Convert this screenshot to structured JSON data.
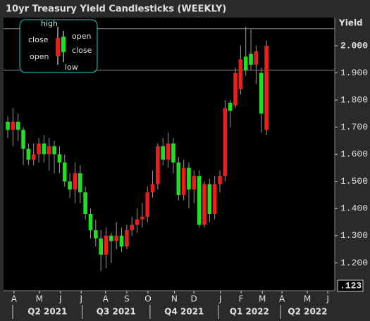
{
  "chart_data": {
    "type": "candlestick",
    "title": "10yr Treasury Yield Candlesticks (WEEKLY)",
    "y_axis_label": "Yield",
    "price_box": ".123",
    "up_color": "#e8201c",
    "down_color": "#22dd22",
    "ylim": [
      1.097,
      2.104
    ],
    "yticks": [
      {
        "value": 1.2,
        "label": "1.200"
      },
      {
        "value": 1.3,
        "label": "1.300"
      },
      {
        "value": 1.4,
        "label": "1.400"
      },
      {
        "value": 1.5,
        "label": "1.500"
      },
      {
        "value": 1.6,
        "label": "1.600"
      },
      {
        "value": 1.7,
        "label": "1.700"
      },
      {
        "value": 1.8,
        "label": "1.800"
      },
      {
        "value": 1.9,
        "label": "1.900"
      },
      {
        "value": 2.0,
        "label": "2.000"
      }
    ],
    "hlines": [
      2.063,
      1.91
    ],
    "xlim": [
      -0.82,
      63.2
    ],
    "xticks": [
      {
        "value": 1.2,
        "label": "A"
      },
      {
        "value": 6.1,
        "label": "M"
      },
      {
        "value": 10.2,
        "label": "J"
      },
      {
        "value": 14.2,
        "label": "J"
      },
      {
        "value": 18.9,
        "label": "A"
      },
      {
        "value": 23.0,
        "label": "S"
      },
      {
        "value": 27.1,
        "label": "O"
      },
      {
        "value": 32.2,
        "label": "N"
      },
      {
        "value": 35.97,
        "label": "D"
      },
      {
        "value": 41.1,
        "label": "J"
      },
      {
        "value": 45.1,
        "label": "F"
      },
      {
        "value": 49.2,
        "label": "M"
      },
      {
        "value": 53.0,
        "label": "A"
      },
      {
        "value": 57.9,
        "label": "M"
      },
      {
        "value": 61.85,
        "label": "J"
      }
    ],
    "quarters": [
      {
        "label": "Q2 2021",
        "start": 0.95,
        "end": 14.4
      },
      {
        "label": "Q3 2021",
        "start": 14.4,
        "end": 27.5
      },
      {
        "label": "Q4 2021",
        "start": 27.5,
        "end": 40.7
      },
      {
        "label": "Q1 2022",
        "start": 40.7,
        "end": 52.7
      },
      {
        "label": "Q2 2022",
        "start": 52.7,
        "end": 63.2
      }
    ],
    "legend_labels": [
      "high",
      "close",
      "open",
      "open",
      "close",
      "low"
    ],
    "x": [
      0,
      1,
      2,
      3,
      4,
      5,
      6,
      7,
      8,
      9,
      10,
      11,
      12,
      13,
      14,
      15,
      16,
      17,
      18,
      19,
      20,
      21,
      22,
      23,
      24,
      25,
      26,
      27,
      28,
      29,
      30,
      31,
      32,
      33,
      34,
      35,
      36,
      37,
      38,
      39,
      40,
      41,
      42,
      43,
      44,
      45,
      46,
      47,
      48,
      49,
      50
    ],
    "open": [
      1.72,
      1.69,
      1.72,
      1.69,
      1.62,
      1.58,
      1.6,
      1.64,
      1.6,
      1.63,
      1.6,
      1.57,
      1.5,
      1.47,
      1.53,
      1.46,
      1.38,
      1.32,
      1.29,
      1.23,
      1.3,
      1.28,
      1.3,
      1.26,
      1.32,
      1.34,
      1.36,
      1.37,
      1.46,
      1.49,
      1.63,
      1.58,
      1.64,
      1.57,
      1.45,
      1.55,
      1.47,
      1.52,
      1.34,
      1.49,
      1.38,
      1.49,
      1.52,
      1.79,
      1.78,
      1.84,
      1.96,
      1.97,
      1.93,
      1.9,
      1.69
    ],
    "high": [
      1.74,
      1.77,
      1.75,
      1.7,
      1.64,
      1.64,
      1.66,
      1.67,
      1.66,
      1.65,
      1.63,
      1.6,
      1.53,
      1.57,
      1.56,
      1.48,
      1.4,
      1.36,
      1.32,
      1.33,
      1.31,
      1.35,
      1.33,
      1.34,
      1.37,
      1.4,
      1.42,
      1.48,
      1.54,
      1.64,
      1.66,
      1.68,
      1.66,
      1.59,
      1.58,
      1.57,
      1.54,
      1.54,
      1.5,
      1.51,
      1.52,
      1.54,
      1.8,
      1.8,
      1.92,
      2.0,
      2.07,
      2.06,
      2.0,
      1.92,
      2.02
    ],
    "low": [
      1.66,
      1.63,
      1.65,
      1.56,
      1.56,
      1.56,
      1.57,
      1.57,
      1.54,
      1.53,
      1.53,
      1.48,
      1.44,
      1.42,
      1.42,
      1.36,
      1.29,
      1.26,
      1.17,
      1.18,
      1.2,
      1.25,
      1.24,
      1.25,
      1.3,
      1.31,
      1.33,
      1.35,
      1.44,
      1.47,
      1.56,
      1.55,
      1.53,
      1.43,
      1.43,
      1.4,
      1.42,
      1.33,
      1.33,
      1.35,
      1.36,
      1.46,
      1.5,
      1.7,
      1.77,
      1.82,
      1.89,
      1.91,
      1.86,
      1.68,
      1.67
    ],
    "close": [
      1.69,
      1.72,
      1.69,
      1.62,
      1.58,
      1.6,
      1.64,
      1.6,
      1.63,
      1.6,
      1.57,
      1.5,
      1.47,
      1.53,
      1.46,
      1.38,
      1.32,
      1.29,
      1.23,
      1.3,
      1.28,
      1.3,
      1.26,
      1.32,
      1.34,
      1.36,
      1.37,
      1.46,
      1.49,
      1.63,
      1.58,
      1.64,
      1.57,
      1.45,
      1.55,
      1.47,
      1.52,
      1.34,
      1.49,
      1.38,
      1.49,
      1.52,
      1.77,
      1.76,
      1.9,
      1.95,
      1.91,
      1.93,
      1.98,
      1.75,
      2.0
    ]
  }
}
